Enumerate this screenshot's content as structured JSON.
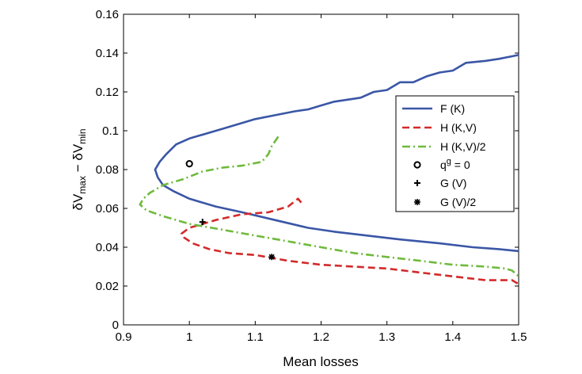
{
  "chart_data": {
    "type": "line",
    "xlabel": "Mean losses",
    "ylabel": {
      "main": "δV",
      "sub1": "max",
      "mid": " − δV",
      "sub2": "min"
    },
    "xlim": [
      0.9,
      1.5
    ],
    "ylim": [
      0,
      0.16
    ],
    "xticks": [
      "0.9",
      "1",
      "1.1",
      "1.2",
      "1.3",
      "1.4",
      "1.5"
    ],
    "yticks": [
      "0",
      "0.02",
      "0.04",
      "0.06",
      "0.08",
      "0.1",
      "0.12",
      "0.14",
      "0.16"
    ],
    "grid": false,
    "legend_position": "right",
    "series": [
      {
        "name": "F (K)",
        "style": "solid",
        "color": "#3a56a6",
        "points": [
          [
            1.5,
            0.139
          ],
          [
            1.47,
            0.137
          ],
          [
            1.45,
            0.136
          ],
          [
            1.42,
            0.135
          ],
          [
            1.4,
            0.131
          ],
          [
            1.38,
            0.13
          ],
          [
            1.36,
            0.128
          ],
          [
            1.34,
            0.125
          ],
          [
            1.32,
            0.125
          ],
          [
            1.3,
            0.121
          ],
          [
            1.28,
            0.12
          ],
          [
            1.26,
            0.117
          ],
          [
            1.24,
            0.116
          ],
          [
            1.22,
            0.115
          ],
          [
            1.2,
            0.113
          ],
          [
            1.18,
            0.111
          ],
          [
            1.16,
            0.11
          ],
          [
            1.13,
            0.108
          ],
          [
            1.1,
            0.106
          ],
          [
            1.05,
            0.101
          ],
          [
            1.0,
            0.096
          ],
          [
            0.98,
            0.093
          ],
          [
            0.965,
            0.088
          ],
          [
            0.955,
            0.084
          ],
          [
            0.948,
            0.08
          ],
          [
            0.952,
            0.076
          ],
          [
            0.96,
            0.072
          ],
          [
            0.975,
            0.069
          ],
          [
            1.0,
            0.065
          ],
          [
            1.04,
            0.061
          ],
          [
            1.08,
            0.058
          ],
          [
            1.13,
            0.054
          ],
          [
            1.18,
            0.05
          ],
          [
            1.22,
            0.048
          ],
          [
            1.27,
            0.046
          ],
          [
            1.32,
            0.044
          ],
          [
            1.38,
            0.042
          ],
          [
            1.43,
            0.04
          ],
          [
            1.47,
            0.039
          ],
          [
            1.5,
            0.038
          ]
        ]
      },
      {
        "name": "H (K,V)",
        "style": "dashed",
        "color": "#d32a2a",
        "points": [
          [
            1.17,
            0.063
          ],
          [
            1.165,
            0.065
          ],
          [
            1.15,
            0.061
          ],
          [
            1.12,
            0.058
          ],
          [
            1.08,
            0.057
          ],
          [
            1.04,
            0.054
          ],
          [
            1.0,
            0.05
          ],
          [
            0.988,
            0.047
          ],
          [
            0.992,
            0.045
          ],
          [
            1.005,
            0.042
          ],
          [
            1.03,
            0.039
          ],
          [
            1.06,
            0.037
          ],
          [
            1.1,
            0.036
          ],
          [
            1.15,
            0.033
          ],
          [
            1.2,
            0.031
          ],
          [
            1.25,
            0.03
          ],
          [
            1.3,
            0.029
          ],
          [
            1.35,
            0.027
          ],
          [
            1.4,
            0.025
          ],
          [
            1.45,
            0.023
          ],
          [
            1.49,
            0.023
          ],
          [
            1.5,
            0.021
          ]
        ]
      },
      {
        "name": "H (K,V)/2",
        "style": "dashdot",
        "color": "#6fba3c",
        "points": [
          [
            1.135,
            0.097
          ],
          [
            1.125,
            0.092
          ],
          [
            1.12,
            0.088
          ],
          [
            1.11,
            0.084
          ],
          [
            1.08,
            0.082
          ],
          [
            1.05,
            0.081
          ],
          [
            1.02,
            0.079
          ],
          [
            0.99,
            0.075
          ],
          [
            0.96,
            0.072
          ],
          [
            0.94,
            0.068
          ],
          [
            0.93,
            0.065
          ],
          [
            0.925,
            0.062
          ],
          [
            0.935,
            0.059
          ],
          [
            0.96,
            0.056
          ],
          [
            1.0,
            0.052
          ],
          [
            1.05,
            0.049
          ],
          [
            1.1,
            0.046
          ],
          [
            1.15,
            0.043
          ],
          [
            1.2,
            0.04
          ],
          [
            1.25,
            0.037
          ],
          [
            1.3,
            0.035
          ],
          [
            1.35,
            0.033
          ],
          [
            1.4,
            0.031
          ],
          [
            1.45,
            0.03
          ],
          [
            1.48,
            0.029
          ],
          [
            1.49,
            0.028
          ],
          [
            1.5,
            0.025
          ]
        ]
      }
    ],
    "markers": [
      {
        "name": "q^g = 0",
        "label_main": "q",
        "label_sup": "g",
        "label_tail": " = 0",
        "symbol": "circle",
        "x": 1.0,
        "y": 0.083
      },
      {
        "name": "G (V)",
        "label_main": "G (V)",
        "symbol": "plus",
        "x": 1.02,
        "y": 0.053
      },
      {
        "name": "G (V)/2",
        "label_main": "G (V)/2",
        "symbol": "star",
        "x": 1.125,
        "y": 0.035
      }
    ]
  }
}
